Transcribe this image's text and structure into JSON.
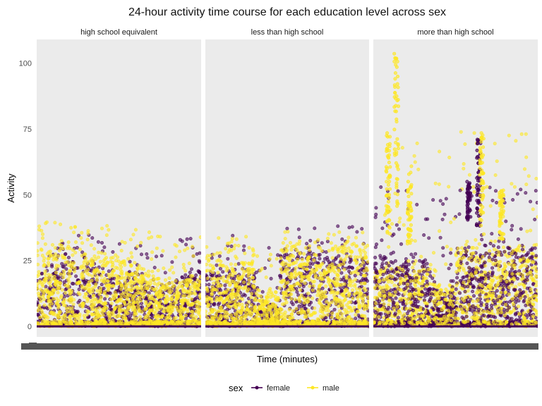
{
  "chart_data": {
    "type": "scatter",
    "title": "24-hour activity time course for each education level across sex",
    "xlabel": "Time (minutes)",
    "ylabel": "Activity",
    "ylim": [
      -4,
      109
    ],
    "yticks": [
      0,
      25,
      50,
      75,
      100
    ],
    "x_axis_labels_visible": false,
    "grid": false,
    "panel_background": "#EBEBEB",
    "legend_position": "bottom",
    "legend_title": "sex",
    "facets": [
      "high school equivalent",
      "less than high school",
      "more than high school"
    ],
    "series": [
      {
        "name": "female",
        "color": "#440154"
      },
      {
        "name": "male",
        "color": "#FDE725"
      }
    ],
    "approx_max_activity": {
      "high school equivalent": {
        "female": 43,
        "male": 47
      },
      "less than high school": {
        "female": 45,
        "male": 40
      },
      "more than high school": {
        "female": 72,
        "male": 104
      }
    }
  }
}
